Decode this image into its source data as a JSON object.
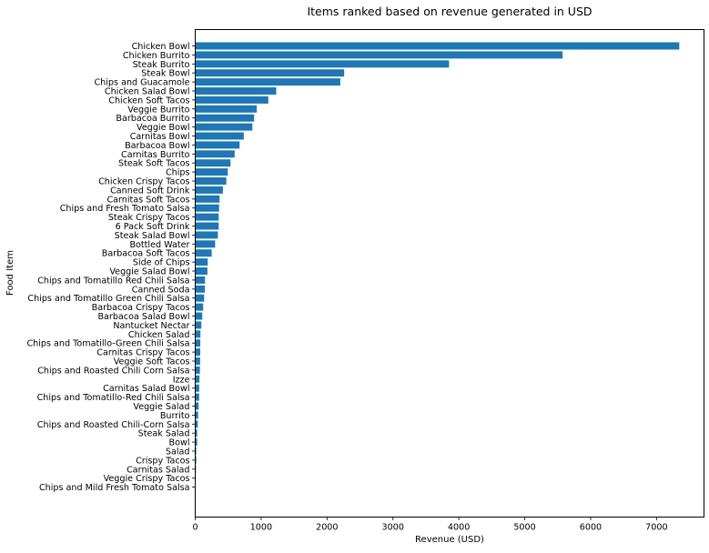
{
  "chart_data": {
    "type": "bar",
    "orientation": "horizontal",
    "title": "Items ranked based on revenue generated in USD",
    "xlabel": "Revenue (USD)",
    "ylabel": "Food Item",
    "xlim": [
      0,
      7720
    ],
    "xticks": [
      0,
      1000,
      2000,
      3000,
      4000,
      5000,
      6000,
      7000
    ],
    "grid": false,
    "bar_color": "#1f77b4",
    "categories": [
      "Chicken Bowl",
      "Chicken Burrito",
      "Steak Burrito",
      "Steak Bowl",
      "Chips and Guacamole",
      "Chicken Salad Bowl",
      "Chicken Soft Tacos",
      "Veggie Burrito",
      "Barbacoa Burrito",
      "Veggie Bowl",
      "Carnitas Bowl",
      "Barbacoa Bowl",
      "Carnitas Burrito",
      "Steak Soft Tacos",
      "Chips",
      "Chicken Crispy Tacos",
      "Canned Soft Drink",
      "Carnitas Soft Tacos",
      "Chips and Fresh Tomato Salsa",
      "Steak Crispy Tacos",
      "6 Pack Soft Drink",
      "Steak Salad Bowl",
      "Bottled Water",
      "Barbacoa Soft Tacos",
      "Side of Chips",
      "Veggie Salad Bowl",
      "Chips and Tomatillo Red Chili Salsa",
      "Canned Soda",
      "Chips and Tomatillo Green Chili Salsa",
      "Barbacoa Crispy Tacos",
      "Barbacoa Salad Bowl",
      "Nantucket Nectar",
      "Chicken Salad",
      "Chips and Tomatillo-Green Chili Salsa",
      "Carnitas Crispy Tacos",
      "Veggie Soft Tacos",
      "Chips and Roasted Chili Corn Salsa",
      "Izze",
      "Carnitas Salad Bowl",
      "Chips and Tomatillo-Red Chili Salsa",
      "Veggie Salad",
      "Burrito",
      "Chips and Roasted Chili-Corn Salsa",
      "Steak Salad",
      "Bowl",
      "Salad",
      "Crispy Tacos",
      "Carnitas Salad",
      "Veggie Crispy Tacos",
      "Chips and Mild Fresh Tomato Salsa"
    ],
    "values": [
      7345,
      5575,
      3851,
      2260,
      2201,
      1229,
      1109,
      934,
      894,
      867,
      737,
      673,
      598,
      535,
      494,
      472,
      420,
      369,
      362,
      356,
      356,
      343,
      302,
      250,
      189,
      185,
      149,
      146,
      135,
      121,
      107,
      93,
      79,
      77,
      76,
      74,
      71,
      64,
      60,
      59,
      51,
      44,
      39,
      29,
      29,
      15,
      15,
      12,
      8,
      3
    ]
  }
}
